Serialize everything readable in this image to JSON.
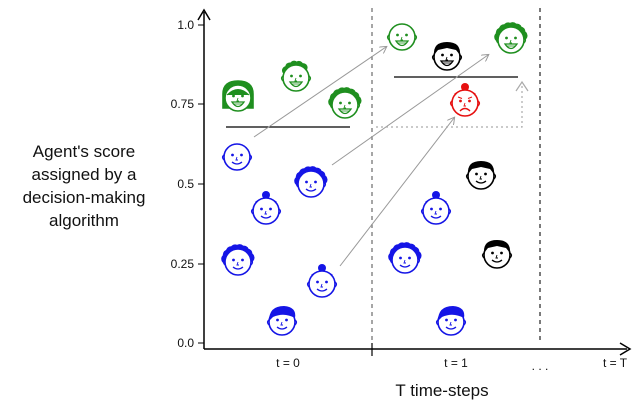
{
  "y_axis": {
    "label_lines": [
      "Agent's score",
      "assigned by a",
      "decision-making",
      "algorithm"
    ],
    "ticks": [
      "0.0",
      "0.25",
      "0.5",
      "0.75",
      "1.0"
    ]
  },
  "x_axis": {
    "title": "T time-steps",
    "step_labels": [
      "t = 0",
      "t = 1",
      ". . .",
      "t = T"
    ]
  },
  "colors": {
    "accepted": "#1f8f1f",
    "rejected": "#1515e6",
    "declined": "#e61010",
    "new_agent": "#000000",
    "arrow": "#999999",
    "threshold": "#000000"
  },
  "icons": {
    "accepted_agent": "smiling-face-icon",
    "rejected_agent": "neutral-face-icon",
    "declined_agent": "sad-face-icon",
    "new_agent": "neutral-face-icon"
  }
}
